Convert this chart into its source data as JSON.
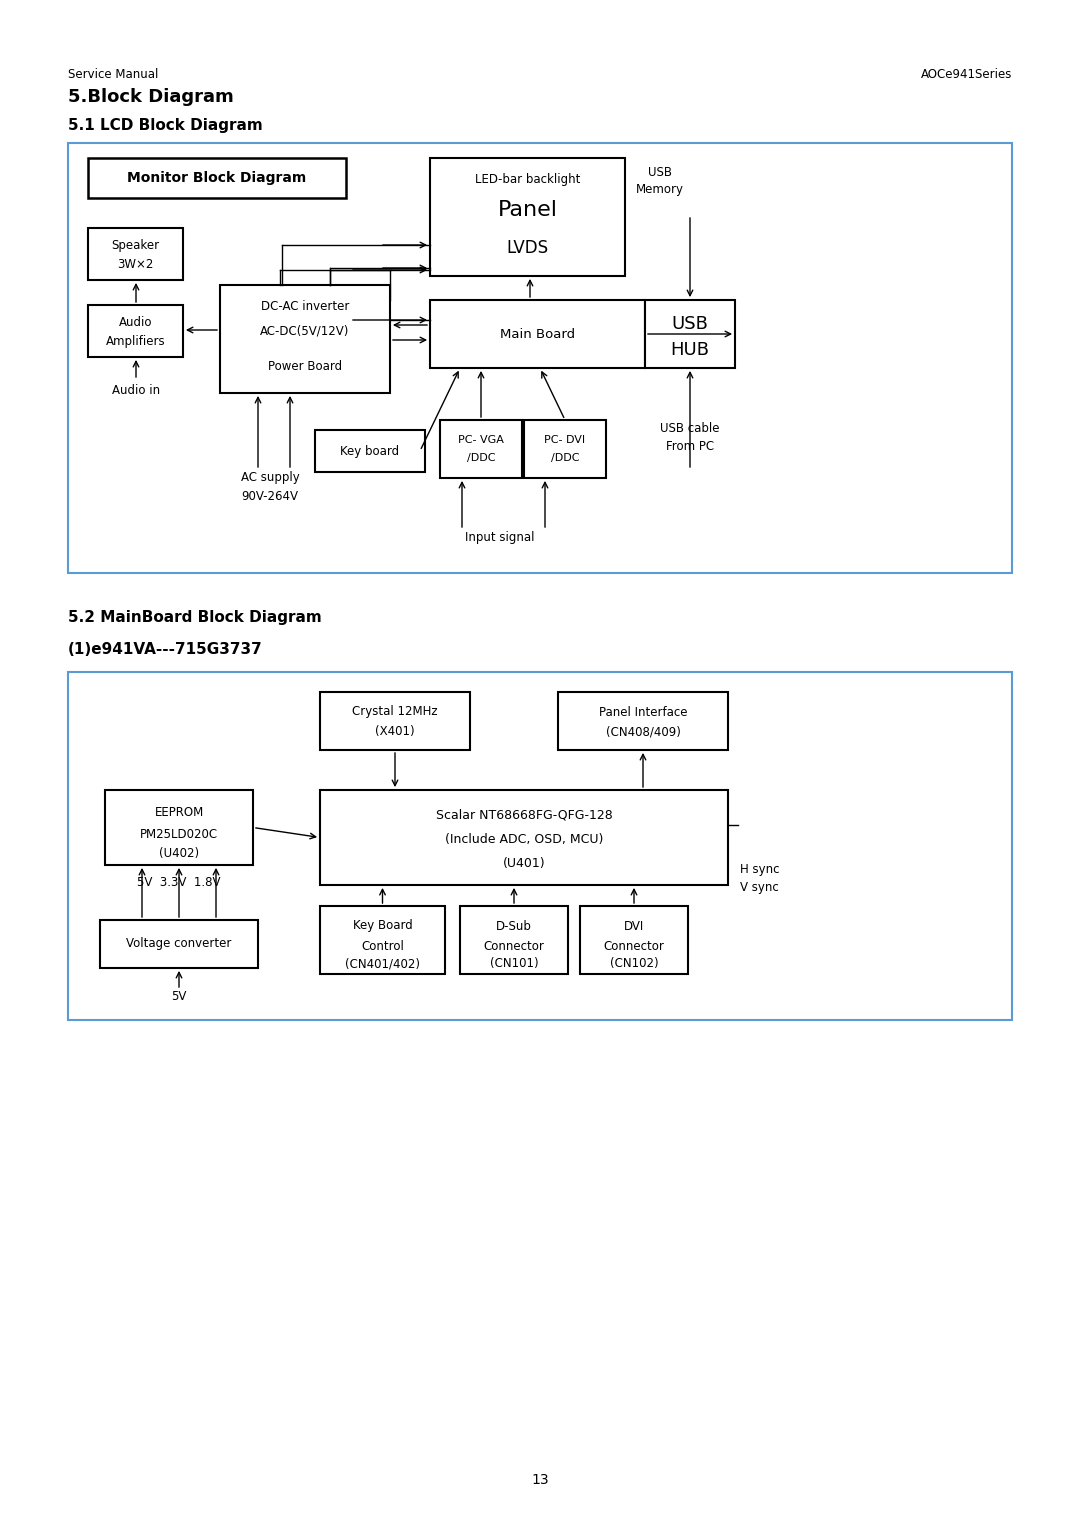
{
  "page_title_left": "Service Manual",
  "page_title_right": "AOCe941Series",
  "section_title": "5.Block Diagram",
  "section_sub": "5.1 LCD Block Diagram",
  "section2_title": "5.2 MainBoard Block Diagram",
  "section2_sub": "(1)e941VA---715G3737",
  "page_number": "13",
  "bg_color": "#ffffff",
  "box_edge_color": "#000000",
  "outer_border_color": "#5b9bd5",
  "text_color": "#000000"
}
